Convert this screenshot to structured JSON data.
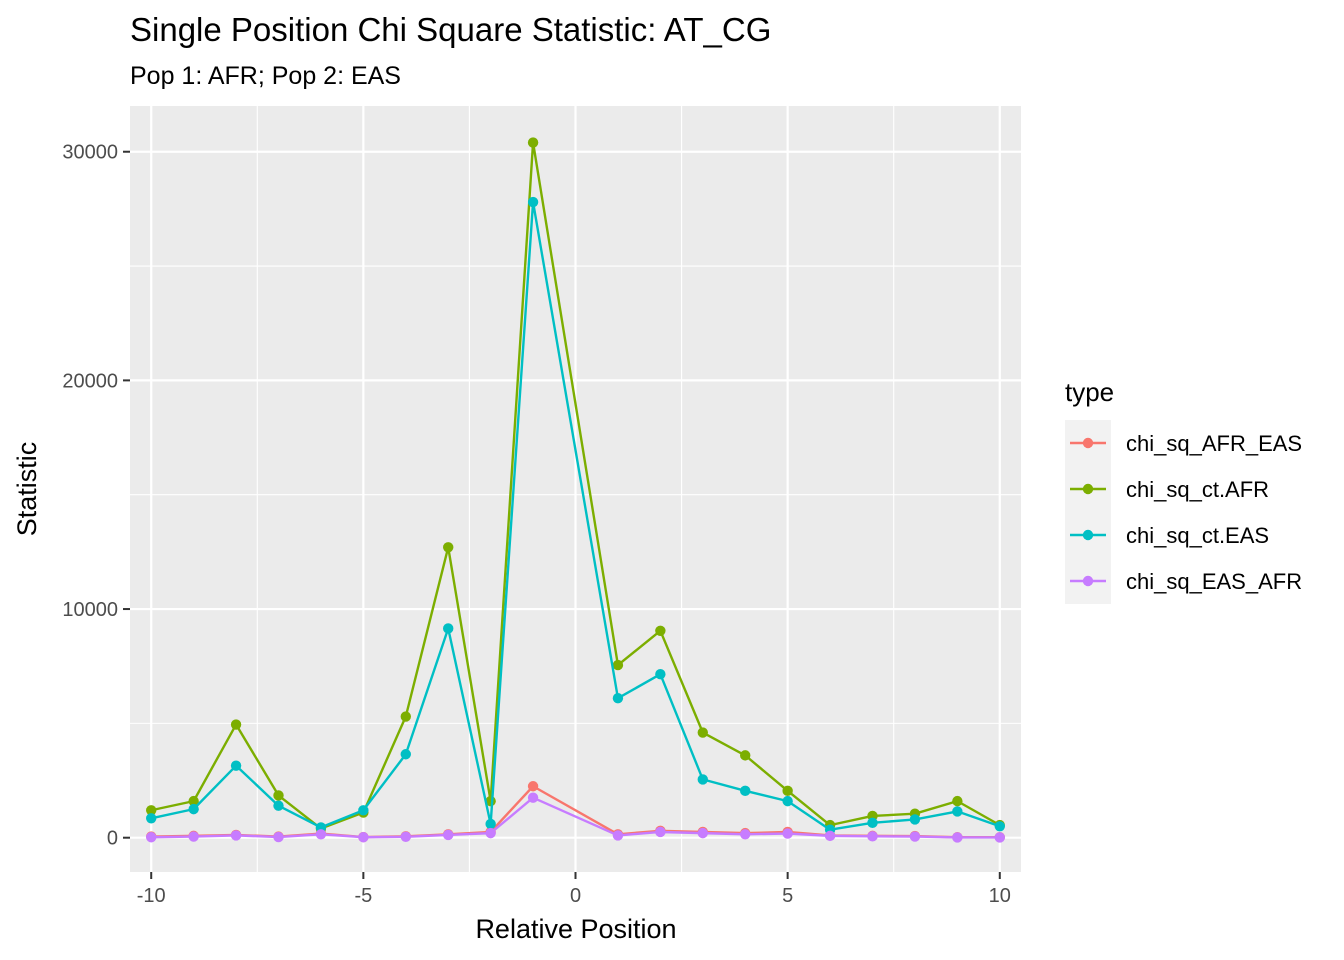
{
  "chart_data": {
    "type": "line",
    "title": "Single Position Chi Square Statistic: AT_CG",
    "subtitle": "Pop 1: AFR; Pop 2: EAS",
    "xlabel": "Relative Position",
    "ylabel": "Statistic",
    "xlim": [
      -10.5,
      10.5
    ],
    "ylim": [
      -1500,
      32000
    ],
    "x_ticks": [
      -10,
      -5,
      0,
      5,
      10
    ],
    "x_tick_labels": [
      "-10",
      "-5",
      "0",
      "5",
      "10"
    ],
    "y_ticks": [
      0,
      10000,
      20000,
      30000
    ],
    "y_tick_labels": [
      "0",
      "10000",
      "20000",
      "30000"
    ],
    "grid": true,
    "background": "#ebebeb",
    "legend": {
      "title": "type",
      "position": "right"
    },
    "x": [
      -10,
      -9,
      -8,
      -7,
      -6,
      -5,
      -4,
      -3,
      -2,
      -1,
      1,
      2,
      3,
      4,
      5,
      6,
      7,
      8,
      9,
      10
    ],
    "series": [
      {
        "name": "chi_sq_AFR_EAS",
        "color": "#F8766D",
        "values": [
          50,
          80,
          120,
          50,
          180,
          30,
          60,
          150,
          250,
          2250,
          150,
          300,
          250,
          200,
          250,
          100,
          80,
          70,
          20,
          20
        ]
      },
      {
        "name": "chi_sq_ct.AFR",
        "color": "#7CAE00",
        "values": [
          1200,
          1600,
          4950,
          1850,
          400,
          1100,
          5300,
          12700,
          1600,
          30400,
          7550,
          9050,
          4600,
          3600,
          2050,
          550,
          950,
          1050,
          1600,
          550
        ]
      },
      {
        "name": "chi_sq_ct.EAS",
        "color": "#00BFC4",
        "values": [
          850,
          1250,
          3150,
          1400,
          450,
          1200,
          3650,
          9150,
          600,
          27800,
          6100,
          7150,
          2550,
          2050,
          1600,
          350,
          650,
          800,
          1150,
          500
        ]
      },
      {
        "name": "chi_sq_EAS_AFR",
        "color": "#C77CFF",
        "values": [
          20,
          50,
          100,
          30,
          150,
          20,
          40,
          120,
          200,
          1750,
          100,
          250,
          200,
          150,
          180,
          80,
          60,
          50,
          10,
          10
        ]
      }
    ]
  }
}
